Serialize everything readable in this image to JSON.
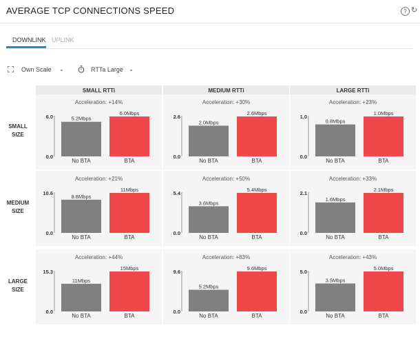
{
  "header": {
    "title": "AVERAGE TCP CONNECTIONS SPEED",
    "help_icon": "help-icon",
    "refresh_icon": "refresh-icon"
  },
  "tabs": [
    {
      "label": "DOWNLINK",
      "active": true
    },
    {
      "label": "UPLINK",
      "active": false
    }
  ],
  "controls": {
    "scale_label": "Own Scale",
    "rtt_label": "RTTa Large"
  },
  "colors": {
    "no_bta": "#808080",
    "bta": "#f0474a",
    "accent": "#1c8fc7"
  },
  "chart_data": {
    "type": "bar",
    "columns": [
      "SMALL RTTi",
      "MEDIUM RTTi",
      "LARGE RTTi"
    ],
    "rows": [
      [
        "SMALL",
        "SIZE"
      ],
      [
        "MEDIUM",
        "SIZE"
      ],
      [
        "LARGE",
        "SIZE"
      ]
    ],
    "categories": [
      "No BTA",
      "BTA"
    ],
    "panels": [
      [
        {
          "acceleration": "Acceleration: +14%",
          "ymax": 6.0,
          "ymax_label": "6.0",
          "ymin_label": "0.0",
          "values": [
            5.2,
            6.0
          ],
          "labels": [
            "5.2Mbps",
            "6.0Mbps"
          ]
        },
        {
          "acceleration": "Acceleration: +30%",
          "ymax": 2.6,
          "ymax_label": "2.6",
          "ymin_label": "0.0",
          "values": [
            2.0,
            2.6
          ],
          "labels": [
            "2.0Mbps",
            "2.6Mbps"
          ]
        },
        {
          "acceleration": "Acceleration: +23%",
          "ymax": 1.0,
          "ymax_label": "1.0",
          "ymin_label": "0.0",
          "values": [
            0.8,
            1.0
          ],
          "labels": [
            "0.8Mbps",
            "1.0Mbps"
          ]
        }
      ],
      [
        {
          "acceleration": "Acceleration: +21%",
          "ymax": 10.6,
          "ymax_label": "10.6",
          "ymin_label": "0.0",
          "values": [
            8.8,
            10.6
          ],
          "labels": [
            "8.8Mbps",
            "11Mbps"
          ]
        },
        {
          "acceleration": "Acceleration: +50%",
          "ymax": 5.4,
          "ymax_label": "5.4",
          "ymin_label": "0.0",
          "values": [
            3.6,
            5.4
          ],
          "labels": [
            "3.6Mbps",
            "5.4Mbps"
          ]
        },
        {
          "acceleration": "Acceleration: +33%",
          "ymax": 2.1,
          "ymax_label": "2.1",
          "ymin_label": "0.0",
          "values": [
            1.6,
            2.1
          ],
          "labels": [
            "1.6Mbps",
            "2.1Mbps"
          ]
        }
      ],
      [
        {
          "acceleration": "Acceleration: +44%",
          "ymax": 15.3,
          "ymax_label": "15.3",
          "ymin_label": "0.0",
          "values": [
            10.6,
            15.3
          ],
          "labels": [
            "11Mbps",
            "15Mbps"
          ]
        },
        {
          "acceleration": "Acceleration: +83%",
          "ymax": 9.6,
          "ymax_label": "9.6",
          "ymin_label": "0.0",
          "values": [
            5.2,
            9.6
          ],
          "labels": [
            "5.2Mbps",
            "9.6Mbps"
          ]
        },
        {
          "acceleration": "Acceleration: +43%",
          "ymax": 5.0,
          "ymax_label": "5.0",
          "ymin_label": "0.0",
          "values": [
            3.5,
            5.0
          ],
          "labels": [
            "3.5Mbps",
            "5.0Mbps"
          ]
        }
      ]
    ]
  }
}
